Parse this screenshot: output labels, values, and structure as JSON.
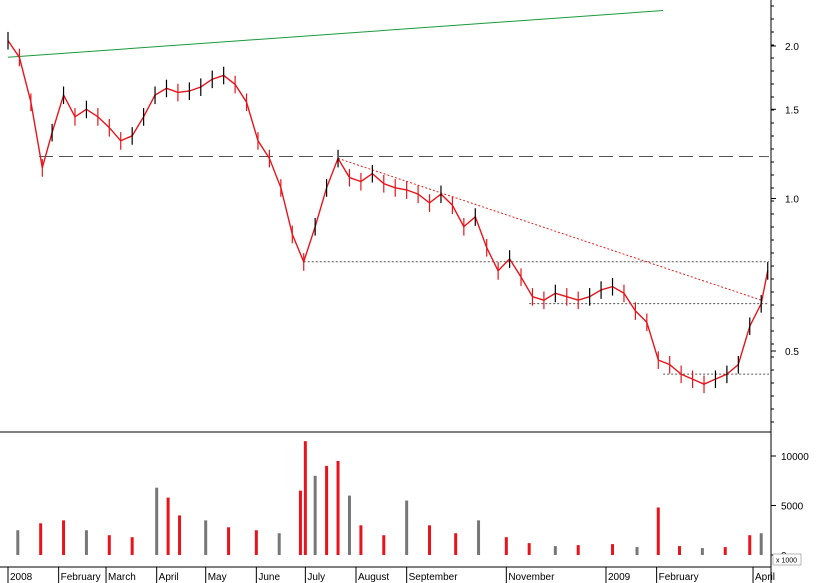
{
  "chart_data": [
    {
      "type": "line",
      "panel": "price",
      "description_kind": "candlestick price chart (log scale)",
      "scale": "log",
      "ylim": [
        0.4,
        2.4
      ],
      "y_ticks": [
        "2.0",
        "1.5",
        "1.0",
        "0.5"
      ],
      "y_tick_values": [
        2.0,
        1.5,
        1.0,
        0.5
      ],
      "x_ticks": [
        "2008",
        "February",
        "March",
        "April",
        "May",
        "June",
        "July",
        "August",
        "September",
        "November",
        "2009",
        "February",
        "April"
      ],
      "x_tick_dates": [
        "2008-01-01",
        "2008-02-01",
        "2008-03-01",
        "2008-04-01",
        "2008-05-01",
        "2008-06-01",
        "2008-07-01",
        "2008-08-01",
        "2008-09-01",
        "2008-11-01",
        "2009-01-01",
        "2009-02-01",
        "2009-04-01"
      ],
      "series": [
        {
          "name": "",
          "points": [
            [
              "2008-01-01",
              2.05
            ],
            [
              "2008-01-08",
              1.9
            ],
            [
              "2008-01-15",
              1.55
            ],
            [
              "2008-01-22",
              1.15
            ],
            [
              "2008-01-28",
              1.35
            ],
            [
              "2008-02-04",
              1.6
            ],
            [
              "2008-02-11",
              1.45
            ],
            [
              "2008-02-18",
              1.5
            ],
            [
              "2008-02-25",
              1.45
            ],
            [
              "2008-03-03",
              1.38
            ],
            [
              "2008-03-10",
              1.3
            ],
            [
              "2008-03-17",
              1.33
            ],
            [
              "2008-03-24",
              1.45
            ],
            [
              "2008-03-31",
              1.6
            ],
            [
              "2008-04-07",
              1.65
            ],
            [
              "2008-04-14",
              1.62
            ],
            [
              "2008-04-21",
              1.63
            ],
            [
              "2008-04-28",
              1.66
            ],
            [
              "2008-05-05",
              1.72
            ],
            [
              "2008-05-12",
              1.75
            ],
            [
              "2008-05-19",
              1.68
            ],
            [
              "2008-05-26",
              1.55
            ],
            [
              "2008-06-02",
              1.3
            ],
            [
              "2008-06-09",
              1.2
            ],
            [
              "2008-06-16",
              1.05
            ],
            [
              "2008-06-23",
              0.85
            ],
            [
              "2008-06-30",
              0.75
            ],
            [
              "2008-07-07",
              0.88
            ],
            [
              "2008-07-14",
              1.05
            ],
            [
              "2008-07-21",
              1.2
            ],
            [
              "2008-07-28",
              1.1
            ],
            [
              "2008-08-04",
              1.08
            ],
            [
              "2008-08-11",
              1.12
            ],
            [
              "2008-08-18",
              1.07
            ],
            [
              "2008-08-25",
              1.05
            ],
            [
              "2008-09-01",
              1.04
            ],
            [
              "2008-09-08",
              1.02
            ],
            [
              "2008-09-15",
              0.98
            ],
            [
              "2008-09-22",
              1.02
            ],
            [
              "2008-09-29",
              0.97
            ],
            [
              "2008-10-06",
              0.88
            ],
            [
              "2008-10-13",
              0.92
            ],
            [
              "2008-10-20",
              0.8
            ],
            [
              "2008-10-27",
              0.72
            ],
            [
              "2008-11-03",
              0.76
            ],
            [
              "2008-11-10",
              0.7
            ],
            [
              "2008-11-17",
              0.64
            ],
            [
              "2008-11-24",
              0.63
            ],
            [
              "2008-12-01",
              0.65
            ],
            [
              "2008-12-08",
              0.64
            ],
            [
              "2008-12-15",
              0.63
            ],
            [
              "2008-12-22",
              0.64
            ],
            [
              "2008-12-29",
              0.66
            ],
            [
              "2009-01-05",
              0.67
            ],
            [
              "2009-01-12",
              0.65
            ],
            [
              "2009-01-19",
              0.6
            ],
            [
              "2009-01-26",
              0.57
            ],
            [
              "2009-02-02",
              0.48
            ],
            [
              "2009-02-09",
              0.47
            ],
            [
              "2009-02-16",
              0.45
            ],
            [
              "2009-02-23",
              0.44
            ],
            [
              "2009-03-02",
              0.43
            ],
            [
              "2009-03-09",
              0.44
            ],
            [
              "2009-03-16",
              0.45
            ],
            [
              "2009-03-23",
              0.47
            ],
            [
              "2009-03-30",
              0.56
            ],
            [
              "2009-04-06",
              0.62
            ],
            [
              "2009-04-10",
              0.72
            ]
          ]
        }
      ],
      "trend_lines": [
        {
          "color": "#1a9a3a",
          "style": "solid",
          "from": [
            "2008-01-01",
            1.9
          ],
          "to": [
            "2009-02-05",
            2.35
          ]
        },
        {
          "color": "#e02020",
          "style": "dotted",
          "from": [
            "2008-07-21",
            1.2
          ],
          "to": [
            "2009-04-06",
            0.63
          ]
        }
      ],
      "horizontal_lines": [
        {
          "color": "#555555",
          "style": "long-dash",
          "value": 1.21,
          "from": "2008-01-20"
        },
        {
          "color": "#555555",
          "style": "dotted",
          "value": 0.75,
          "from": "2008-06-30"
        },
        {
          "color": "#555555",
          "style": "dotted",
          "value": 0.62,
          "from": "2008-11-15"
        },
        {
          "color": "#555555",
          "style": "dotted",
          "value": 0.45,
          "from": "2009-02-05"
        }
      ],
      "colors": {
        "up": "#000000",
        "down": "#e8141b",
        "line": "#e8141b",
        "axis": "#000000"
      },
      "grid": false
    },
    {
      "type": "bar",
      "panel": "volume",
      "ylim": [
        0,
        12000
      ],
      "y_ticks": [
        "10000",
        "5000",
        "0"
      ],
      "y_tick_values": [
        10000,
        5000,
        0
      ],
      "unit_label": "x 1000",
      "series": [
        {
          "name": "",
          "points": [
            [
              "2008-01-07",
              2500
            ],
            [
              "2008-01-21",
              3200
            ],
            [
              "2008-02-04",
              3500
            ],
            [
              "2008-02-18",
              2500
            ],
            [
              "2008-03-03",
              2000
            ],
            [
              "2008-03-17",
              1800
            ],
            [
              "2008-04-01",
              6800
            ],
            [
              "2008-04-08",
              5800
            ],
            [
              "2008-04-15",
              4000
            ],
            [
              "2008-05-01",
              3500
            ],
            [
              "2008-05-15",
              2800
            ],
            [
              "2008-06-01",
              2500
            ],
            [
              "2008-06-15",
              2200
            ],
            [
              "2008-06-28",
              6500
            ],
            [
              "2008-07-01",
              11500
            ],
            [
              "2008-07-07",
              8000
            ],
            [
              "2008-07-14",
              9000
            ],
            [
              "2008-07-21",
              9500
            ],
            [
              "2008-07-28",
              6000
            ],
            [
              "2008-08-04",
              3000
            ],
            [
              "2008-08-18",
              2000
            ],
            [
              "2008-09-01",
              5500
            ],
            [
              "2008-09-15",
              3000
            ],
            [
              "2008-10-01",
              2200
            ],
            [
              "2008-10-15",
              3500
            ],
            [
              "2008-11-01",
              1800
            ],
            [
              "2008-11-15",
              1200
            ],
            [
              "2008-12-01",
              900
            ],
            [
              "2008-12-15",
              1000
            ],
            [
              "2009-01-05",
              1100
            ],
            [
              "2009-01-20",
              800
            ],
            [
              "2009-02-02",
              4800
            ],
            [
              "2009-02-15",
              900
            ],
            [
              "2009-03-01",
              700
            ],
            [
              "2009-03-15",
              800
            ],
            [
              "2009-03-30",
              2000
            ],
            [
              "2009-04-06",
              2200
            ]
          ]
        }
      ],
      "colors": {
        "up": "#777777",
        "down": "#e8141b"
      }
    }
  ]
}
